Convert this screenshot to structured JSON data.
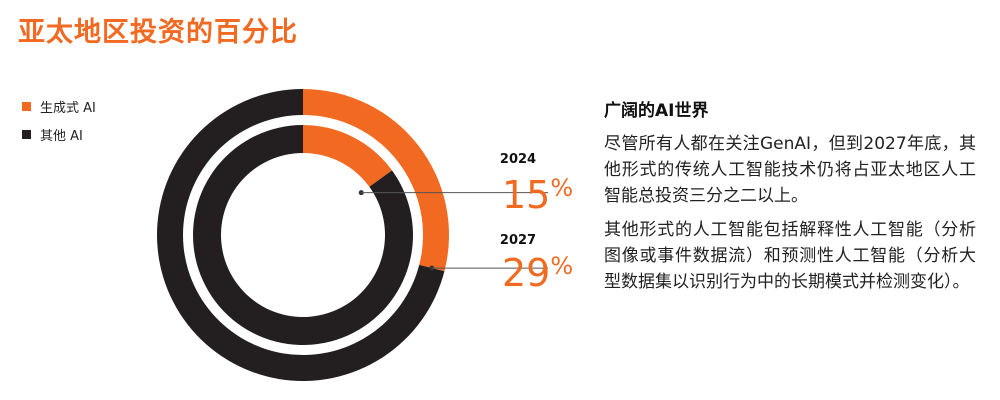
{
  "title": "亚太地区投资的百分比",
  "colors": {
    "accent": "#f26a21",
    "dark": "#231f20",
    "leader": "#555555"
  },
  "chart_data": {
    "type": "pie",
    "subtype": "nested-donut",
    "series": [
      {
        "name": "2027",
        "ring": "outer",
        "slices": [
          {
            "label": "生成式 AI",
            "value": 29
          },
          {
            "label": "其他 AI",
            "value": 71
          }
        ],
        "label_value": "29",
        "label_suffix": "%"
      },
      {
        "name": "2024",
        "ring": "inner",
        "slices": [
          {
            "label": "生成式 AI",
            "value": 15
          },
          {
            "label": "其他 AI",
            "value": 85
          }
        ],
        "label_value": "15",
        "label_suffix": "%"
      }
    ],
    "legend": [
      {
        "label": "生成式 AI",
        "color": "#f26a21"
      },
      {
        "label": "其他 AI",
        "color": "#231f20"
      }
    ],
    "legend_position": "top-left"
  },
  "side": {
    "heading": "广阔的AI世界",
    "paragraphs": [
      "尽管所有人都在关注GenAI，但到2027年底，其他形式的传统人工智能技术仍将占亚太地区人工智能总投资三分之二以上。",
      "其他形式的人工智能包括解释性人工智能（分析图像或事件数据流）和预测性人工智能（分析大型数据集以识别行为中的长期模式并检测变化）。"
    ]
  }
}
